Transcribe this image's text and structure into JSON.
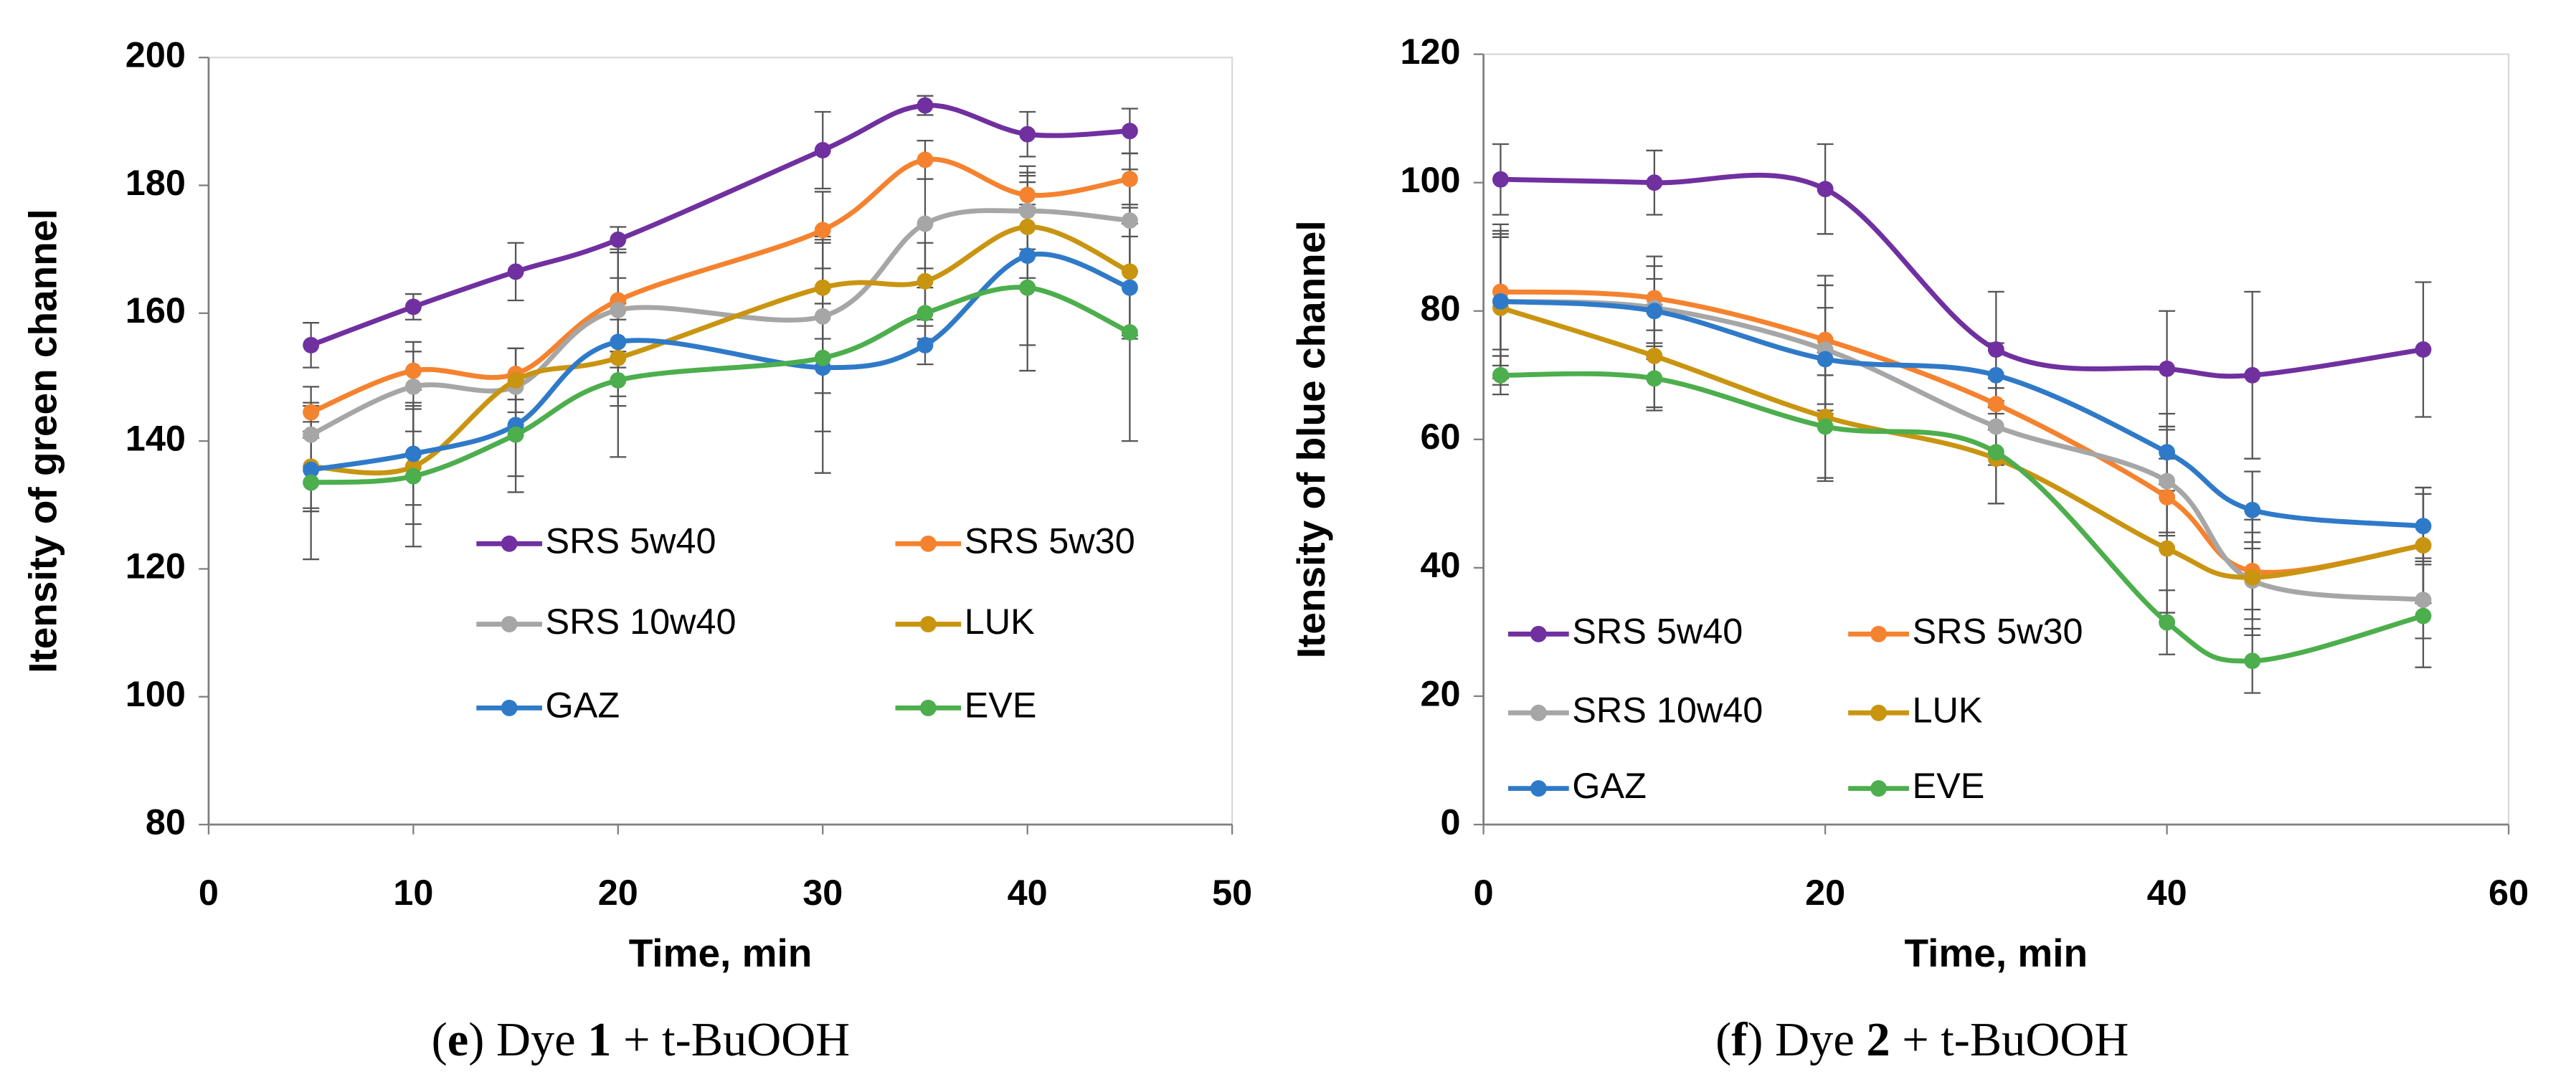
{
  "chart_data": [
    {
      "type": "line",
      "smooth": true,
      "x_label": "Time, min",
      "y_label": "Itensity of green channel",
      "x": [
        5,
        10,
        15,
        20,
        30,
        35,
        40,
        45
      ],
      "xlim": [
        0,
        50
      ],
      "xticks": [
        0,
        10,
        20,
        30,
        40,
        50
      ],
      "ylim": [
        80,
        200
      ],
      "yticks": [
        80,
        100,
        120,
        140,
        160,
        180,
        200
      ],
      "series": [
        {
          "name": "SRS 5w40",
          "color": "#7030a0",
          "values": [
            155,
            161,
            166.5,
            171.5,
            185.5,
            192.5,
            188,
            188.5
          ],
          "errors": [
            3.5,
            2,
            4.5,
            2,
            6,
            1.5,
            3.5,
            3.5
          ]
        },
        {
          "name": "SRS 5w30",
          "color": "#f5822e",
          "values": [
            144.5,
            151,
            150.5,
            162,
            173,
            184,
            178.5,
            181
          ],
          "errors": [
            4,
            3,
            4,
            8,
            6,
            3,
            2,
            4
          ]
        },
        {
          "name": "SRS 10w40",
          "color": "#a6a6a6",
          "values": [
            141,
            148.5,
            148.5,
            160.5,
            159.5,
            174,
            176,
            174.5
          ],
          "errors": [
            5,
            7,
            6,
            9,
            12,
            7,
            6,
            8
          ]
        },
        {
          "name": "LUK",
          "color": "#c99410",
          "values": [
            136,
            136,
            149.5,
            153,
            164,
            165,
            173.5,
            166.5
          ],
          "errors": [
            7,
            9,
            5,
            6,
            8,
            6,
            8,
            10
          ]
        },
        {
          "name": "GAZ",
          "color": "#2f7ac8",
          "values": [
            135.5,
            138,
            142.5,
            155.5,
            151.5,
            155,
            169,
            164
          ],
          "errors": [
            6,
            8,
            8,
            10,
            10,
            3,
            14,
            8
          ]
        },
        {
          "name": "EVE",
          "color": "#4cae4c",
          "values": [
            133.5,
            134.5,
            141,
            149.5,
            153,
            160,
            164,
            157
          ],
          "errors": [
            12,
            11,
            9,
            12,
            18,
            4,
            13,
            17
          ]
        }
      ],
      "caption": [
        {
          "text": "(",
          "bold": false
        },
        {
          "text": "e",
          "bold": true
        },
        {
          "text": ") Dye ",
          "bold": false
        },
        {
          "text": "1",
          "bold": true
        },
        {
          "text": " + t-BuOOH",
          "bold": false
        }
      ]
    },
    {
      "type": "line",
      "smooth": true,
      "x_label": "Time, min",
      "y_label": "Itensity of blue channel",
      "x": [
        1,
        10,
        20,
        30,
        40,
        45,
        55
      ],
      "xlim": [
        0,
        60
      ],
      "xticks": [
        0,
        20,
        40,
        60
      ],
      "ylim": [
        0,
        120
      ],
      "yticks": [
        0,
        20,
        40,
        60,
        80,
        100,
        120
      ],
      "series": [
        {
          "name": "SRS 5w40",
          "color": "#7030a0",
          "values": [
            100.5,
            100,
            99,
            74,
            71,
            70,
            74
          ],
          "errors": [
            5.5,
            5,
            7,
            9,
            9,
            13,
            10.5
          ]
        },
        {
          "name": "SRS 5w30",
          "color": "#f5822e",
          "values": [
            83,
            82,
            75.5,
            65.5,
            51,
            39.5,
            43.5
          ],
          "errors": [
            9,
            5,
            10,
            4,
            6,
            6,
            9
          ]
        },
        {
          "name": "SRS 10w40",
          "color": "#a6a6a6",
          "values": [
            81.5,
            80.5,
            74,
            62,
            53.5,
            38,
            35
          ],
          "errors": [
            12,
            8,
            10,
            6,
            8,
            6,
            6
          ]
        },
        {
          "name": "LUK",
          "color": "#c99410",
          "values": [
            80.5,
            73,
            63.5,
            57,
            43,
            38.5,
            43.5
          ],
          "errors": [
            12,
            8,
            10,
            7,
            10,
            9,
            9
          ]
        },
        {
          "name": "GAZ",
          "color": "#2f7ac8",
          "values": [
            81.5,
            80,
            72.5,
            70,
            58,
            49,
            46.5
          ],
          "errors": [
            10,
            5,
            8,
            5,
            6,
            6,
            5
          ]
        },
        {
          "name": "EVE",
          "color": "#4cae4c",
          "values": [
            70,
            69.5,
            62,
            58,
            31.5,
            25.5,
            32.5
          ],
          "errors": [
            3,
            5,
            8,
            8,
            5,
            5,
            8
          ]
        }
      ],
      "caption": [
        {
          "text": "(",
          "bold": false
        },
        {
          "text": "f",
          "bold": true
        },
        {
          "text": ") Dye ",
          "bold": false
        },
        {
          "text": "2",
          "bold": true
        },
        {
          "text": " + t-BuOOH",
          "bold": false
        }
      ]
    }
  ]
}
